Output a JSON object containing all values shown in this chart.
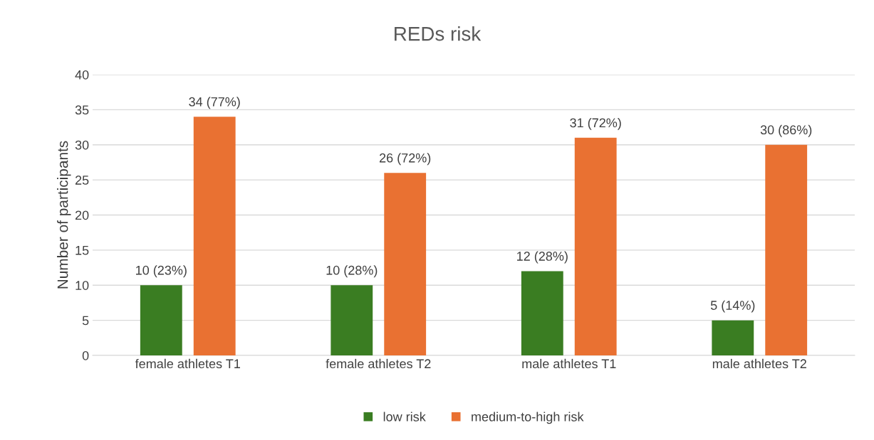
{
  "chart_data": {
    "type": "bar",
    "title": "REDs risk",
    "ylabel": "Number of participants",
    "categories": [
      "female athletes T1",
      "female athletes T2",
      "male athletes T1",
      "male athletes T2"
    ],
    "series": [
      {
        "name": "low risk",
        "color": "#3a7d22",
        "values": [
          10,
          10,
          12,
          5
        ],
        "value_labels": [
          "10 (23%)",
          "10 (28%)",
          "12 (28%)",
          "5 (14%)"
        ]
      },
      {
        "name": "medium-to-high risk",
        "color": "#e97132",
        "values": [
          34,
          26,
          31,
          30
        ],
        "value_labels": [
          "34 (77%)",
          "26 (72%)",
          "31 (72%)",
          "30 (86%)"
        ]
      }
    ],
    "ylim": [
      0,
      40
    ],
    "yticks": [
      0,
      5,
      10,
      15,
      20,
      25,
      30,
      35,
      40
    ],
    "grid": "y",
    "legend": "bottom"
  }
}
